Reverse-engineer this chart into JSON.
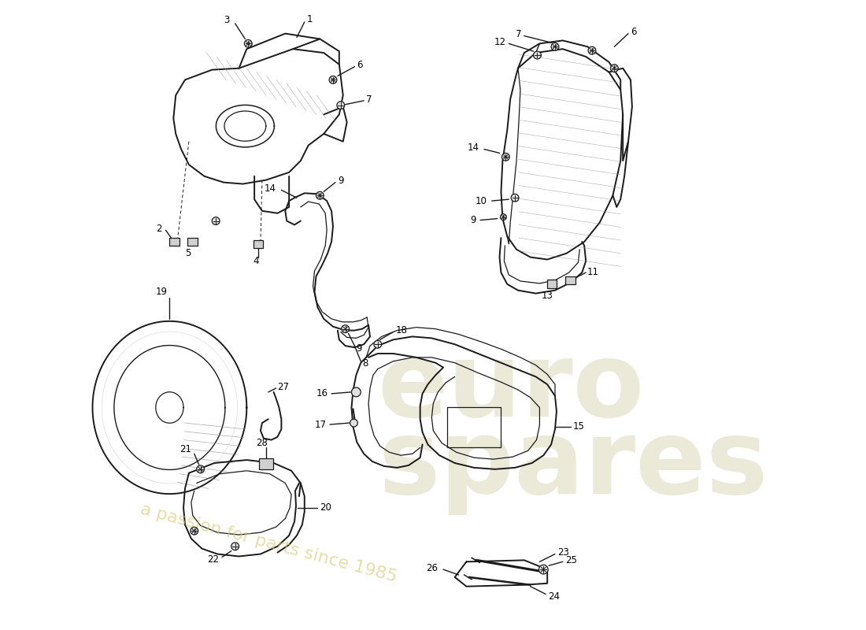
{
  "bg_color": "#ffffff",
  "line_color": "#1a1a1a",
  "label_color": "#000000",
  "watermark1": "euro",
  "watermark2": "spares",
  "watermark3": "a passion for parts since 1985",
  "wm_color": "#d4c870",
  "wm_alpha": 0.45
}
